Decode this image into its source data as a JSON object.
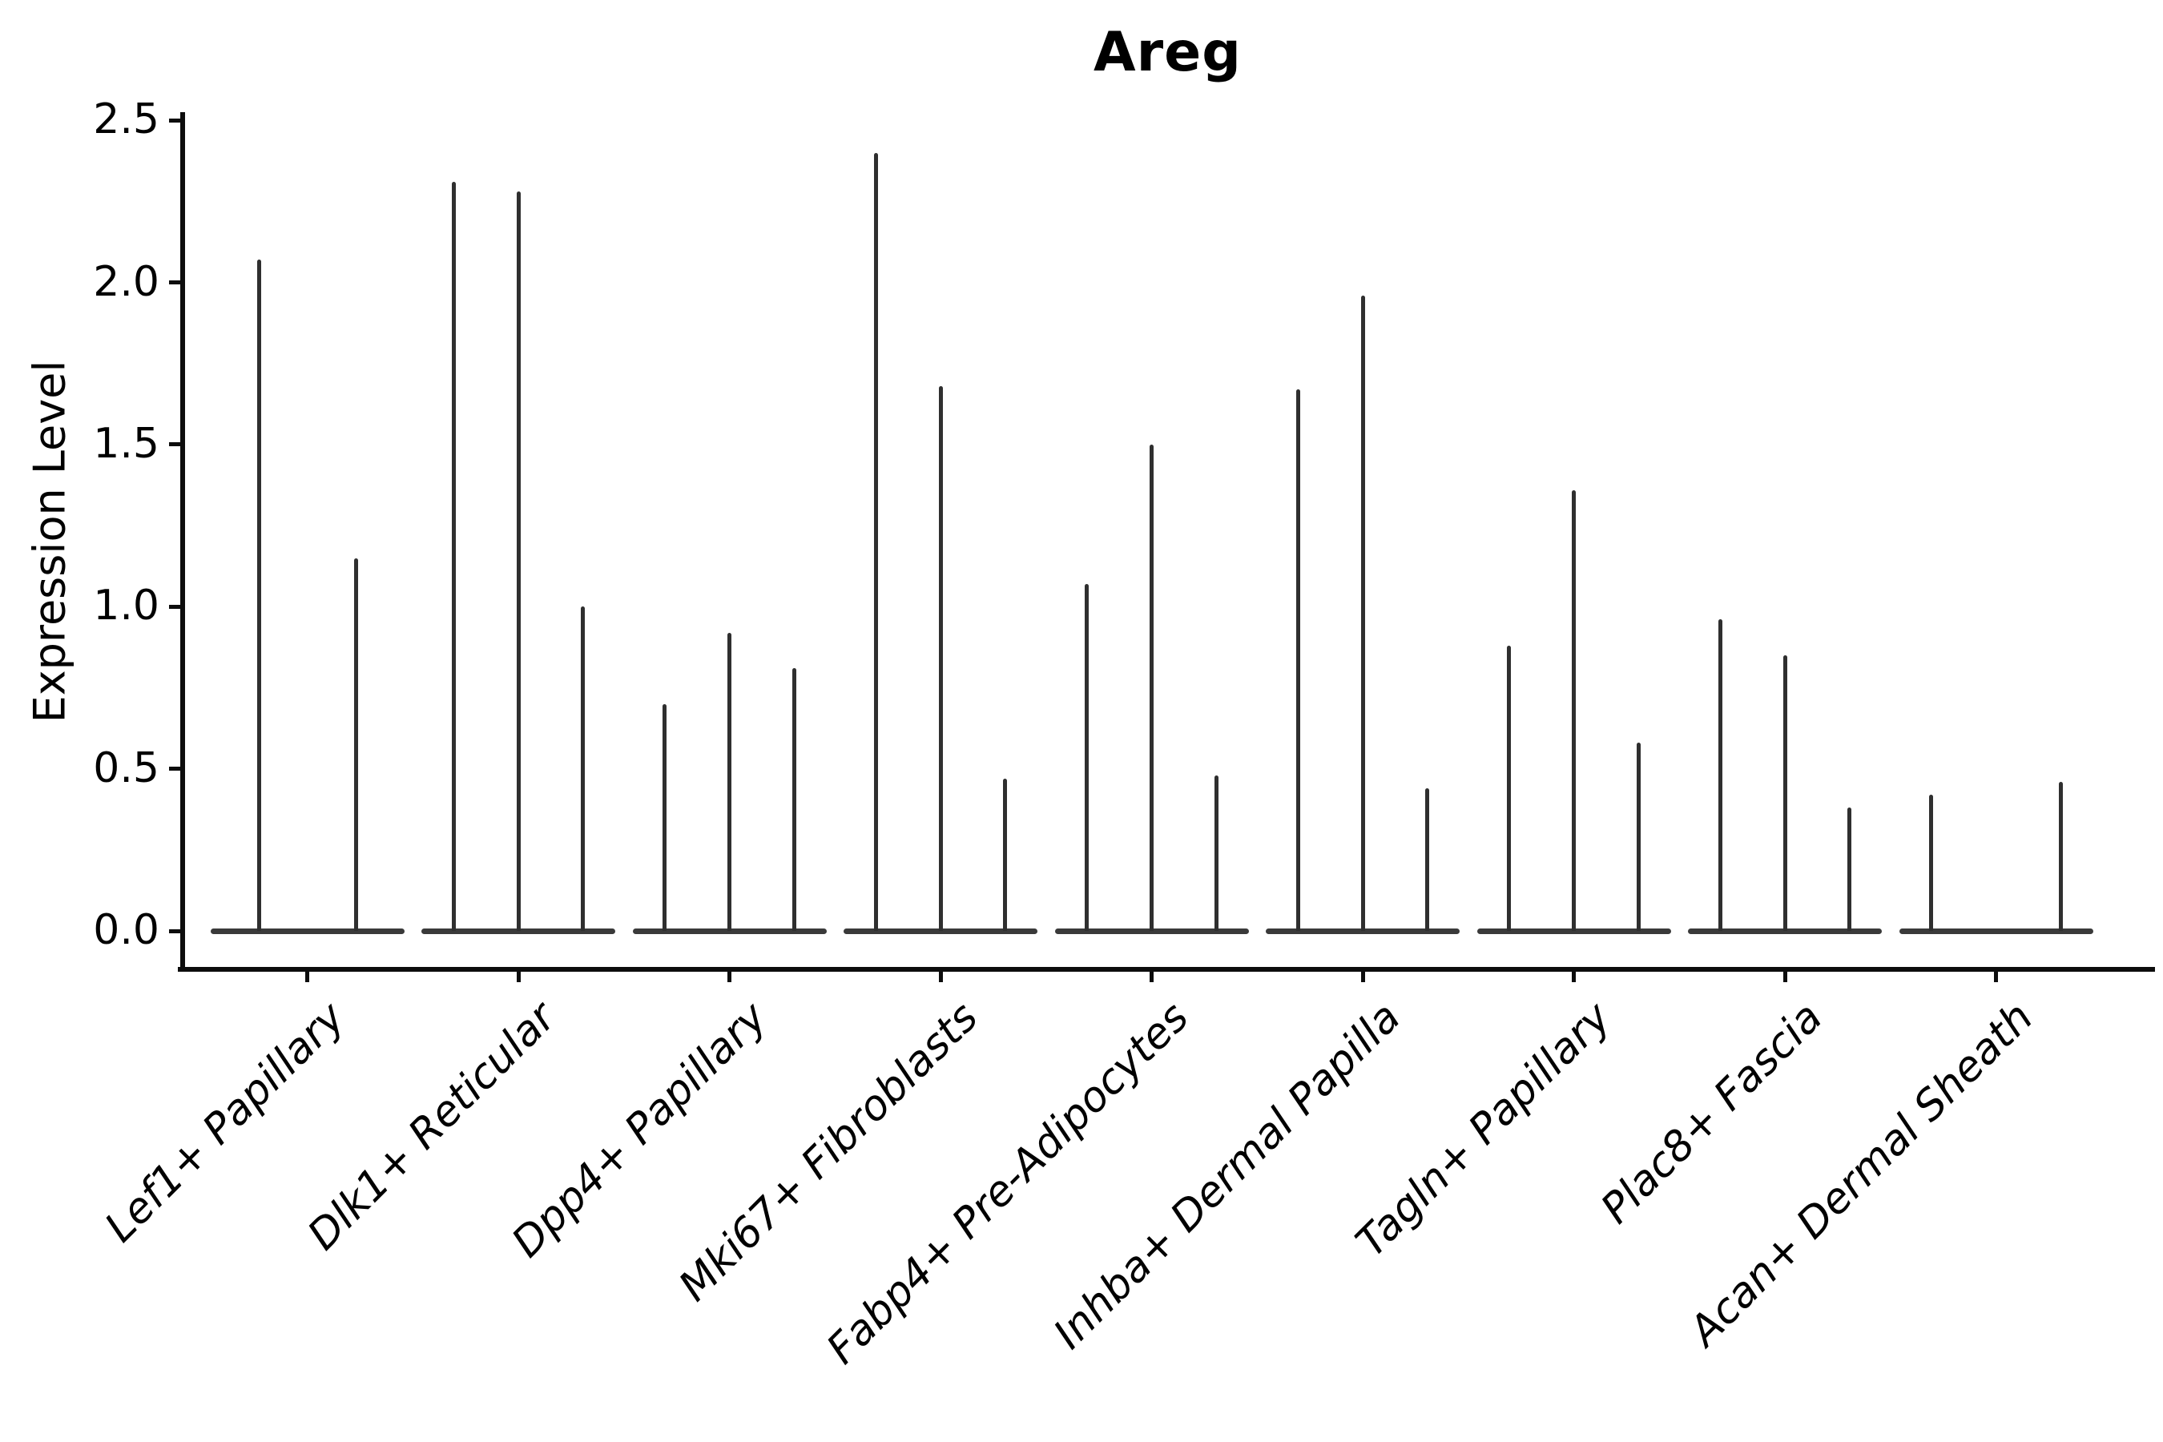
{
  "chart_data": {
    "type": "violin",
    "title": "Areg",
    "xlabel": "",
    "ylabel": "Expression Level",
    "ylim": [
      0,
      2.5
    ],
    "yticks": [
      "0.0",
      "0.5",
      "1.0",
      "1.5",
      "2.0",
      "2.5"
    ],
    "grid": false,
    "legend": "none",
    "categories": [
      "Lef1+ Papillary",
      "Dlk1+ Reticular",
      "Dpp4+ Papillary",
      "Mki67+ Fibroblasts",
      "Fabp4+ Pre-Adipocytes",
      "Inhba+ Dermal Papilla",
      "Tagln+ Papillary",
      "Plac8+ Fascia",
      "Acan+ Dermal Sheath"
    ],
    "groups": [
      {
        "category": "Lef1+ Papillary",
        "slots": 2,
        "violins": [
          {
            "slot": 0,
            "max": 2.07
          },
          {
            "slot": 1,
            "max": 1.15
          }
        ]
      },
      {
        "category": "Dlk1+ Reticular",
        "slots": 3,
        "violins": [
          {
            "slot": 0,
            "max": 2.31
          },
          {
            "slot": 1,
            "max": 2.28
          },
          {
            "slot": 2,
            "max": 1.0
          }
        ]
      },
      {
        "category": "Dpp4+ Papillary",
        "slots": 3,
        "violins": [
          {
            "slot": 0,
            "max": 0.7
          },
          {
            "slot": 1,
            "max": 0.92
          },
          {
            "slot": 2,
            "max": 0.81
          }
        ]
      },
      {
        "category": "Mki67+ Fibroblasts",
        "slots": 3,
        "violins": [
          {
            "slot": 0,
            "max": 2.4
          },
          {
            "slot": 1,
            "max": 1.68
          },
          {
            "slot": 2,
            "max": 0.47
          }
        ]
      },
      {
        "category": "Fabp4+ Pre-Adipocytes",
        "slots": 3,
        "violins": [
          {
            "slot": 0,
            "max": 1.07
          },
          {
            "slot": 1,
            "max": 1.5
          },
          {
            "slot": 2,
            "max": 0.48
          }
        ]
      },
      {
        "category": "Inhba+ Dermal Papilla",
        "slots": 3,
        "violins": [
          {
            "slot": 0,
            "max": 1.67
          },
          {
            "slot": 1,
            "max": 1.96
          },
          {
            "slot": 2,
            "max": 0.44
          }
        ]
      },
      {
        "category": "Tagln+ Papillary",
        "slots": 3,
        "violins": [
          {
            "slot": 0,
            "max": 0.88
          },
          {
            "slot": 1,
            "max": 1.36
          },
          {
            "slot": 2,
            "max": 0.58
          }
        ]
      },
      {
        "category": "Plac8+ Fascia",
        "slots": 3,
        "violins": [
          {
            "slot": 0,
            "max": 0.96
          },
          {
            "slot": 1,
            "max": 0.85
          },
          {
            "slot": 2,
            "max": 0.38
          }
        ]
      },
      {
        "category": "Acan+ Dermal Sheath",
        "slots": 3,
        "violins": [
          {
            "slot": 0,
            "max": 0.42
          },
          {
            "slot": 2,
            "max": 0.46
          }
        ]
      }
    ],
    "colors": {
      "violin_fill": "#2f2f2f",
      "baseline_fill": "#3a3a3a",
      "axis": "#0d0d0d",
      "text": "#000000",
      "background": "#ffffff"
    }
  }
}
